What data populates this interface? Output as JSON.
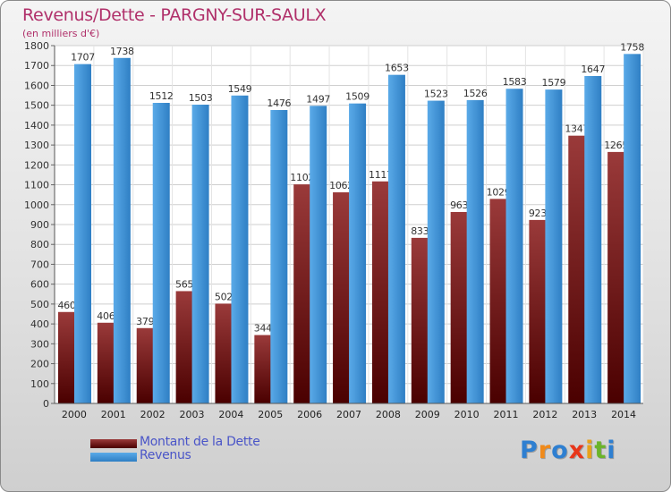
{
  "title": "Revenus/Dette - PARGNY-SUR-SAULX",
  "subtitle": "(en milliers d'€)",
  "legend": {
    "debt_label": "Montant de la Dette",
    "revenue_label": "Revenus"
  },
  "logo": {
    "text": "Proxiti",
    "letters": [
      "P",
      "r",
      "o",
      "x",
      "i",
      "t",
      "i"
    ],
    "letter_colors": [
      "#2e7fd1",
      "#f08a1a",
      "#2e7fd1",
      "#e8361a",
      "#e8a21a",
      "#6bb42a",
      "#2e7fd1"
    ]
  },
  "colors": {
    "debt_top": "#9a3a3a",
    "debt_bottom": "#4a0000",
    "revenue_light": "#5aaae8",
    "revenue_dark": "#2f7fc4",
    "title": "#b0306a",
    "legend_text": "#4a55c8"
  },
  "chart_data": {
    "type": "bar",
    "title": "Revenus/Dette - PARGNY-SUR-SAULX",
    "ylabel": "(en milliers d'€)",
    "categories": [
      "2000",
      "2001",
      "2002",
      "2003",
      "2004",
      "2005",
      "2006",
      "2007",
      "2008",
      "2009",
      "2010",
      "2011",
      "2012",
      "2013",
      "2014"
    ],
    "ylim": [
      0,
      1800
    ],
    "yticks": [
      0,
      100,
      200,
      300,
      400,
      500,
      600,
      700,
      800,
      900,
      1000,
      1100,
      1200,
      1300,
      1400,
      1500,
      1600,
      1700,
      1800
    ],
    "grid": true,
    "legend_position": "bottom-left",
    "series": [
      {
        "name": "Montant de la Dette",
        "values": [
          460,
          406,
          379,
          565,
          502,
          344,
          1102,
          1062,
          1117,
          833,
          963,
          1029,
          923,
          1347,
          1265
        ],
        "labels": [
          "460",
          "406",
          "379",
          "565",
          "502",
          "344",
          "1102",
          "1062",
          "1117",
          "833",
          "963",
          "1029",
          "923",
          "1347",
          "1265"
        ]
      },
      {
        "name": "Revenus",
        "values": [
          1707,
          1738,
          1512,
          1503,
          1549,
          1476,
          1497,
          1509,
          1653,
          1523,
          1526,
          1583,
          1579,
          1647,
          1758
        ],
        "labels": [
          "1707",
          "1738",
          "1512",
          "1503",
          "1549",
          "1476",
          "1497",
          "1509",
          "1653",
          "1523",
          "1526",
          "1583",
          "1579",
          "1647",
          "1758"
        ]
      }
    ]
  }
}
